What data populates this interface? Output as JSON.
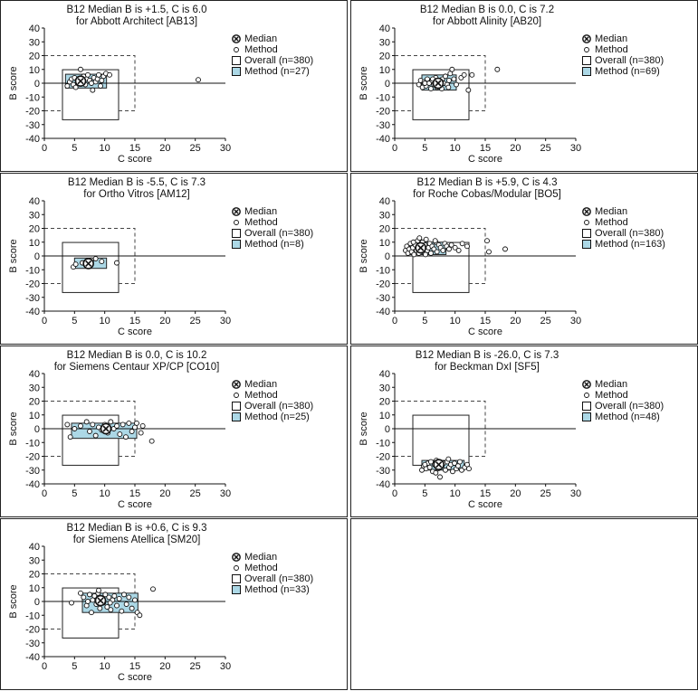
{
  "legend": {
    "median": "Median",
    "method": "Method",
    "overall": "Overall (n=380)"
  },
  "axis": {
    "xlabel": "C score",
    "ylabel": "B score",
    "xticks": [
      0,
      5,
      10,
      15,
      20,
      25,
      30
    ],
    "yticks": [
      40,
      30,
      20,
      10,
      0,
      -10,
      -20,
      -30,
      -40
    ]
  },
  "chart_data": [
    {
      "type": "scatter",
      "title_line1": "B12 Median B is +1.5, C is 6.0",
      "title_line2": "for  Abbott Architect [AB13]",
      "method_legend": "Method (n=27)",
      "median": [
        6.0,
        1.5
      ],
      "method_box": {
        "c": [
          3.5,
          10.3
        ],
        "b": [
          -3.5,
          6.5
        ]
      },
      "overall_box": {
        "c": [
          3,
          12.3
        ],
        "b": [
          -26.5,
          9.8
        ]
      },
      "dashed_box": {
        "c": [
          0,
          15
        ],
        "b": [
          -20,
          20
        ]
      },
      "xlim": [
        0,
        30
      ],
      "ylim": [
        -40,
        40
      ],
      "points": [
        [
          3.8,
          -2
        ],
        [
          4.2,
          1
        ],
        [
          4.5,
          3
        ],
        [
          4.8,
          -1
        ],
        [
          5.0,
          4
        ],
        [
          5.2,
          -3
        ],
        [
          5.5,
          2
        ],
        [
          5.8,
          0
        ],
        [
          6.0,
          10
        ],
        [
          6.3,
          1
        ],
        [
          6.5,
          5
        ],
        [
          6.8,
          -1
        ],
        [
          7.0,
          3
        ],
        [
          7.2,
          6
        ],
        [
          7.5,
          2
        ],
        [
          7.8,
          0
        ],
        [
          8.0,
          -5
        ],
        [
          8.2,
          4
        ],
        [
          8.5,
          1
        ],
        [
          8.8,
          3
        ],
        [
          9.0,
          6
        ],
        [
          9.3,
          -2
        ],
        [
          9.5,
          2
        ],
        [
          9.8,
          5
        ],
        [
          10.2,
          7
        ],
        [
          10.8,
          6
        ],
        [
          25.5,
          2.5
        ]
      ]
    },
    {
      "type": "scatter",
      "title_line1": "B12 Median B is 0.0, C is 7.2",
      "title_line2": "for  Abbott Alinity [AB20]",
      "method_legend": "Method (n=69)",
      "median": [
        7.2,
        0.0
      ],
      "method_box": {
        "c": [
          4.5,
          10.2
        ],
        "b": [
          -5,
          6
        ]
      },
      "overall_box": {
        "c": [
          3,
          12.3
        ],
        "b": [
          -26.5,
          9.8
        ]
      },
      "dashed_box": {
        "c": [
          0,
          15
        ],
        "b": [
          -20,
          20
        ]
      },
      "xlim": [
        0,
        30
      ],
      "ylim": [
        -40,
        40
      ],
      "points": [
        [
          4.0,
          -1
        ],
        [
          4.3,
          2
        ],
        [
          4.6,
          -3
        ],
        [
          4.9,
          1
        ],
        [
          5.2,
          -2
        ],
        [
          5.4,
          3
        ],
        [
          5.7,
          0
        ],
        [
          6.0,
          -4
        ],
        [
          6.2,
          2
        ],
        [
          6.5,
          -1
        ],
        [
          6.8,
          4
        ],
        [
          7.0,
          -3
        ],
        [
          7.3,
          1
        ],
        [
          7.6,
          -2
        ],
        [
          7.9,
          3
        ],
        [
          8.1,
          0
        ],
        [
          8.4,
          5
        ],
        [
          8.7,
          -1
        ],
        [
          9.0,
          2
        ],
        [
          9.2,
          7
        ],
        [
          9.5,
          10
        ],
        [
          9.8,
          3
        ],
        [
          10.2,
          -1
        ],
        [
          11.0,
          4
        ],
        [
          11.5,
          6
        ],
        [
          12.2,
          -5
        ],
        [
          12.8,
          6
        ],
        [
          17.0,
          10
        ],
        [
          5.0,
          0
        ],
        [
          6.3,
          3
        ],
        [
          7.8,
          -4
        ],
        [
          8.9,
          -3
        ]
      ]
    },
    {
      "type": "scatter",
      "title_line1": "B12 Median B is -5.5, C is 7.3",
      "title_line2": "for  Ortho Vitros [AM12]",
      "method_legend": "Method (n=8)",
      "median": [
        7.3,
        -5.5
      ],
      "method_box": {
        "c": [
          5,
          10.3
        ],
        "b": [
          -9,
          -1.5
        ]
      },
      "overall_box": {
        "c": [
          3,
          12.3
        ],
        "b": [
          -26.5,
          9.8
        ]
      },
      "dashed_box": {
        "c": [
          0,
          15
        ],
        "b": [
          -20,
          20
        ]
      },
      "xlim": [
        0,
        30
      ],
      "ylim": [
        -40,
        40
      ],
      "points": [
        [
          4.8,
          -8
        ],
        [
          5.2,
          -6
        ],
        [
          6.3,
          -5
        ],
        [
          7.0,
          -7
        ],
        [
          7.8,
          -3
        ],
        [
          8.5,
          -2
        ],
        [
          9.5,
          -4
        ],
        [
          12.0,
          -5
        ]
      ]
    },
    {
      "type": "scatter",
      "title_line1": "B12 Median B is +5.9, C is 4.3",
      "title_line2": "for  Roche Cobas/Modular [BO5]",
      "method_legend": "Method (n=163)",
      "median": [
        4.3,
        5.9
      ],
      "method_box": {
        "c": [
          2.5,
          8.5
        ],
        "b": [
          1,
          10
        ]
      },
      "overall_box": {
        "c": [
          3,
          12.3
        ],
        "b": [
          -26.5,
          9.8
        ]
      },
      "dashed_box": {
        "c": [
          0,
          15
        ],
        "b": [
          -20,
          20
        ]
      },
      "xlim": [
        0,
        30
      ],
      "ylim": [
        -40,
        40
      ],
      "points": [
        [
          1.8,
          4
        ],
        [
          2.0,
          7
        ],
        [
          2.2,
          2
        ],
        [
          2.4,
          5
        ],
        [
          2.6,
          9
        ],
        [
          2.8,
          3
        ],
        [
          3.0,
          6
        ],
        [
          3.2,
          1
        ],
        [
          3.4,
          8
        ],
        [
          3.6,
          4
        ],
        [
          3.8,
          11
        ],
        [
          4.0,
          2
        ],
        [
          4.2,
          7
        ],
        [
          4.4,
          5
        ],
        [
          4.6,
          10
        ],
        [
          4.8,
          3
        ],
        [
          5.0,
          8
        ],
        [
          5.2,
          12
        ],
        [
          5.4,
          4
        ],
        [
          5.6,
          6
        ],
        [
          5.8,
          9
        ],
        [
          6.0,
          2
        ],
        [
          6.2,
          7
        ],
        [
          6.5,
          5
        ],
        [
          6.8,
          10
        ],
        [
          7.0,
          3
        ],
        [
          7.3,
          8
        ],
        [
          7.6,
          6
        ],
        [
          8.0,
          4
        ],
        [
          8.3,
          9
        ],
        [
          8.6,
          7
        ],
        [
          9.0,
          5
        ],
        [
          9.4,
          8
        ],
        [
          10.0,
          6
        ],
        [
          10.6,
          4
        ],
        [
          11.2,
          9
        ],
        [
          12.0,
          7
        ],
        [
          15.3,
          11
        ],
        [
          15.6,
          3
        ],
        [
          18.3,
          5
        ],
        [
          3.1,
          10
        ],
        [
          5.1,
          1
        ],
        [
          6.7,
          11
        ],
        [
          4.1,
          13
        ]
      ]
    },
    {
      "type": "scatter",
      "title_line1": "B12 Median B is 0.0, C is 10.2",
      "title_line2": "for  Siemens Centaur XP/CP [CO10]",
      "method_legend": "Method (n=25)",
      "median": [
        10.2,
        0.0
      ],
      "method_box": {
        "c": [
          4.5,
          15.3
        ],
        "b": [
          -7,
          4
        ]
      },
      "overall_box": {
        "c": [
          3,
          12.3
        ],
        "b": [
          -26.5,
          9.8
        ]
      },
      "dashed_box": {
        "c": [
          0,
          15
        ],
        "b": [
          -20,
          20
        ]
      },
      "xlim": [
        0,
        30
      ],
      "ylim": [
        -40,
        40
      ],
      "points": [
        [
          3.8,
          3
        ],
        [
          4.3,
          -6
        ],
        [
          5.0,
          0
        ],
        [
          6.0,
          2
        ],
        [
          7.0,
          5
        ],
        [
          7.5,
          -2
        ],
        [
          8.0,
          3
        ],
        [
          8.5,
          -5
        ],
        [
          9.0,
          1
        ],
        [
          9.5,
          -1
        ],
        [
          10.0,
          3
        ],
        [
          10.5,
          -3
        ],
        [
          11.0,
          5
        ],
        [
          11.5,
          0
        ],
        [
          12.0,
          2
        ],
        [
          12.5,
          -4
        ],
        [
          13.0,
          3
        ],
        [
          13.5,
          -6
        ],
        [
          14.0,
          4
        ],
        [
          14.5,
          -2
        ],
        [
          15.0,
          1
        ],
        [
          15.3,
          4
        ],
        [
          16.0,
          -3
        ],
        [
          16.3,
          2
        ],
        [
          17.8,
          -9
        ]
      ]
    },
    {
      "type": "scatter",
      "title_line1": "B12 Median B is -26.0, C is 7.3",
      "title_line2": "for  Beckman DxI [SF5]",
      "method_legend": "Method (n=48)",
      "median": [
        7.3,
        -26.0
      ],
      "method_box": {
        "c": [
          4.5,
          11.5
        ],
        "b": [
          -30,
          -23
        ]
      },
      "overall_box": {
        "c": [
          3,
          12.3
        ],
        "b": [
          -26.5,
          9.8
        ]
      },
      "dashed_box": {
        "c": [
          0,
          15
        ],
        "b": [
          -20,
          20
        ]
      },
      "xlim": [
        0,
        30
      ],
      "ylim": [
        -40,
        40
      ],
      "points": [
        [
          4.5,
          -30
        ],
        [
          4.8,
          -27
        ],
        [
          5.2,
          -29
        ],
        [
          5.5,
          -25
        ],
        [
          5.8,
          -28
        ],
        [
          6.0,
          -24
        ],
        [
          6.3,
          -31
        ],
        [
          6.6,
          -26
        ],
        [
          6.9,
          -23
        ],
        [
          7.2,
          -29
        ],
        [
          7.5,
          -35
        ],
        [
          7.8,
          -27
        ],
        [
          8.1,
          -25
        ],
        [
          8.4,
          -30
        ],
        [
          8.7,
          -24
        ],
        [
          9.0,
          -28
        ],
        [
          9.3,
          -26
        ],
        [
          9.6,
          -31
        ],
        [
          9.9,
          -25
        ],
        [
          10.2,
          -29
        ],
        [
          10.5,
          -27
        ],
        [
          10.8,
          -24
        ],
        [
          11.1,
          -30
        ],
        [
          11.6,
          -28
        ],
        [
          12.0,
          -26
        ],
        [
          12.3,
          -29
        ],
        [
          5.0,
          -26
        ],
        [
          6.8,
          -32
        ],
        [
          8.9,
          -22
        ]
      ]
    },
    {
      "type": "scatter",
      "title_line1": "B12 Median B is +0.6, C is 9.3",
      "title_line2": "for  Siemens Atellica [SM20]",
      "method_legend": "Method (n=33)",
      "median": [
        9.3,
        0.6
      ],
      "method_box": {
        "c": [
          6.3,
          15.5
        ],
        "b": [
          -8,
          6
        ]
      },
      "overall_box": {
        "c": [
          3,
          12.3
        ],
        "b": [
          -26.5,
          9.8
        ]
      },
      "dashed_box": {
        "c": [
          0,
          15
        ],
        "b": [
          -20,
          20
        ]
      },
      "xlim": [
        0,
        30
      ],
      "ylim": [
        -40,
        40
      ],
      "points": [
        [
          4.5,
          -1
        ],
        [
          6.0,
          6
        ],
        [
          6.5,
          3
        ],
        [
          7.0,
          -3
        ],
        [
          7.5,
          5
        ],
        [
          7.8,
          -8
        ],
        [
          8.0,
          1
        ],
        [
          8.3,
          4
        ],
        [
          8.6,
          -2
        ],
        [
          8.9,
          6
        ],
        [
          9.2,
          -5
        ],
        [
          9.5,
          2
        ],
        [
          9.8,
          -1
        ],
        [
          10.1,
          5
        ],
        [
          10.4,
          -4
        ],
        [
          10.7,
          3
        ],
        [
          11.0,
          -6
        ],
        [
          11.3,
          1
        ],
        [
          11.6,
          4
        ],
        [
          12.0,
          -3
        ],
        [
          12.4,
          2
        ],
        [
          12.8,
          -7
        ],
        [
          13.2,
          5
        ],
        [
          13.6,
          -2
        ],
        [
          14.0,
          3
        ],
        [
          14.5,
          -5
        ],
        [
          15.0,
          1
        ],
        [
          15.4,
          -8
        ],
        [
          15.8,
          -10
        ],
        [
          18.0,
          9
        ],
        [
          7.2,
          0
        ],
        [
          9.0,
          8
        ],
        [
          10.9,
          -1
        ]
      ]
    }
  ]
}
